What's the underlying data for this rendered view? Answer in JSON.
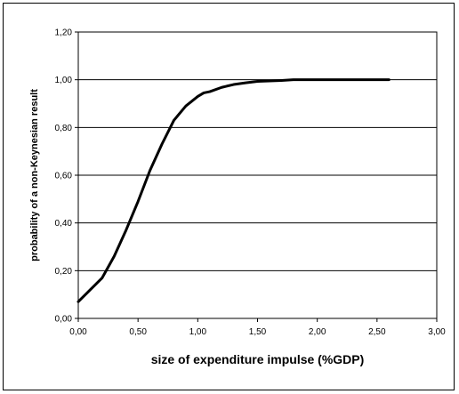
{
  "chart_data": {
    "type": "line",
    "title": "",
    "xlabel": "size of expenditure impulse (%GDP)",
    "ylabel": "probability of a non-Keynesian result",
    "xlim": [
      0,
      3
    ],
    "ylim": [
      0,
      1.2
    ],
    "x_ticks": [
      "0,00",
      "0,50",
      "1,00",
      "1,50",
      "2,00",
      "2,50",
      "3,00"
    ],
    "y_ticks": [
      "0,00",
      "0,20",
      "0,40",
      "0,60",
      "0,80",
      "1,00",
      "1,20"
    ],
    "x_tick_values": [
      0,
      0.5,
      1,
      1.5,
      2,
      2.5,
      3
    ],
    "y_tick_values": [
      0,
      0.2,
      0.4,
      0.6,
      0.8,
      1,
      1.2
    ],
    "grid": "horizontal",
    "legend": "none",
    "colors": {
      "line": "#000000",
      "grid": "#000000",
      "background": "#ffffff"
    },
    "series": [
      {
        "x": [
          0,
          0.1,
          0.2,
          0.3,
          0.4,
          0.5,
          0.6,
          0.7,
          0.8,
          0.9,
          1.0,
          1.05,
          1.1,
          1.2,
          1.3,
          1.4,
          1.5,
          1.6,
          1.7,
          1.8,
          1.9,
          2.0,
          2.2,
          2.4,
          2.6
        ],
        "y": [
          0.07,
          0.12,
          0.17,
          0.26,
          0.37,
          0.49,
          0.62,
          0.73,
          0.83,
          0.89,
          0.93,
          0.945,
          0.95,
          0.968,
          0.98,
          0.987,
          0.993,
          0.995,
          0.997,
          1.0,
          1.0,
          1.0,
          1.0,
          1.0,
          1.0
        ]
      }
    ]
  }
}
